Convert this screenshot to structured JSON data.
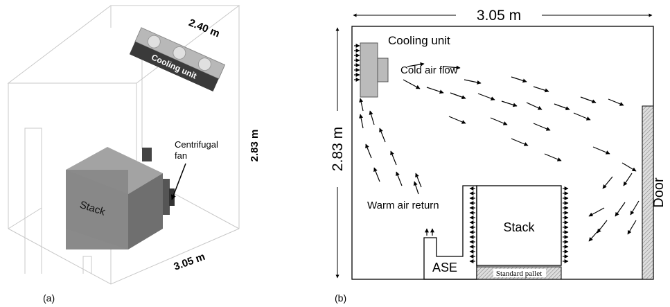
{
  "panel_a": {
    "caption": "(a)",
    "width_label": "2.40 m",
    "height_label": "2.83 m",
    "length_label": "3.05 m",
    "cooling_unit": "Cooling unit",
    "fan_label": [
      "Centrifugal",
      "fan"
    ],
    "stack": "Stack"
  },
  "panel_b": {
    "caption": "(b)",
    "width_label": "3.05 m",
    "height_label": "2.83 m",
    "cooling_unit": "Cooling unit",
    "cold_air": "Cold air flow",
    "warm_air": "Warm air return",
    "stack": "Stack",
    "ase": "ASE",
    "pallet": "Standard pallet",
    "door": "Door"
  }
}
